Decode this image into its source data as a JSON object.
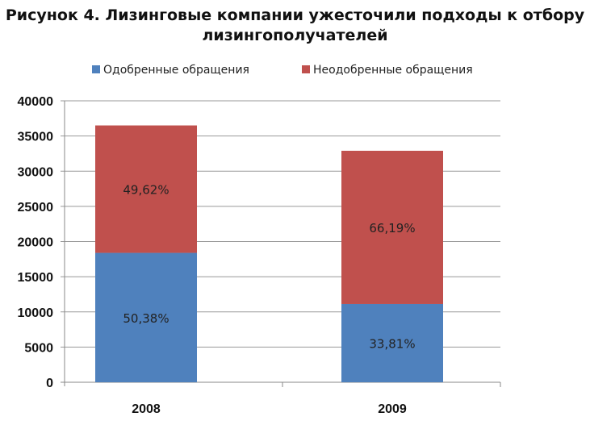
{
  "chart_data": {
    "type": "bar",
    "stacked": true,
    "title": "Рисунок 4. Лизинговые компании ужесточили подходы к отбору лизингополучателей",
    "title_lines": [
      "Рисунок 4. Лизинговые компании ужесточили подходы к отбору",
      "лизингополучателей"
    ],
    "categories": [
      "2008",
      "2009"
    ],
    "series": [
      {
        "name": "Одобренные обращения",
        "values": [
          18390,
          11120
        ],
        "labels": [
          "50,38%",
          "33,81%"
        ],
        "color": "#4f81bd"
      },
      {
        "name": "Неодобренные обращения",
        "values": [
          18110,
          21780
        ],
        "labels": [
          "49,62%",
          "66,19%"
        ],
        "color": "#c0504d"
      }
    ],
    "ylim": [
      0,
      40000
    ],
    "yticks": [
      0,
      5000,
      10000,
      15000,
      20000,
      25000,
      30000,
      35000,
      40000
    ],
    "grid": true,
    "legend": "top"
  }
}
